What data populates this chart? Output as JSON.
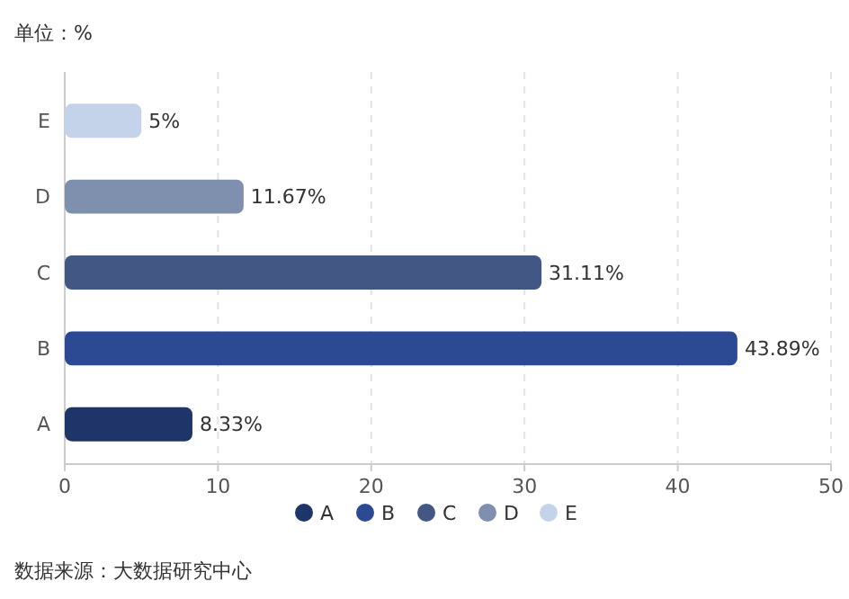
{
  "chart_data": {
    "type": "bar",
    "orientation": "horizontal",
    "categories": [
      "E",
      "D",
      "C",
      "B",
      "A"
    ],
    "series": [
      {
        "name": "A",
        "color": "#1f3468",
        "values": [
          null,
          null,
          null,
          null,
          8.33
        ],
        "value_labels": [
          null,
          null,
          null,
          null,
          "8.33%"
        ]
      },
      {
        "name": "B",
        "color": "#2c4a94",
        "values": [
          null,
          null,
          null,
          43.89,
          null
        ],
        "value_labels": [
          null,
          null,
          null,
          "43.89%",
          null
        ]
      },
      {
        "name": "C",
        "color": "#425783",
        "values": [
          null,
          null,
          31.11,
          null,
          null
        ],
        "value_labels": [
          null,
          null,
          "31.11%",
          null,
          null
        ]
      },
      {
        "name": "D",
        "color": "#7f8fae",
        "values": [
          null,
          11.67,
          null,
          null,
          null
        ],
        "value_labels": [
          null,
          "11.67%",
          null,
          null,
          null
        ]
      },
      {
        "name": "E",
        "color": "#c5d3ea",
        "values": [
          5,
          null,
          null,
          null,
          null
        ],
        "value_labels": [
          "5%",
          null,
          null,
          null,
          null
        ]
      }
    ],
    "xlim": [
      0,
      50
    ],
    "xticks": [
      0,
      10,
      20,
      30,
      40,
      50
    ],
    "grid": "x",
    "legend": "bottom",
    "marker": "circle",
    "annotations": [
      "单位：%",
      "数据来源：大数据研究中心"
    ]
  }
}
